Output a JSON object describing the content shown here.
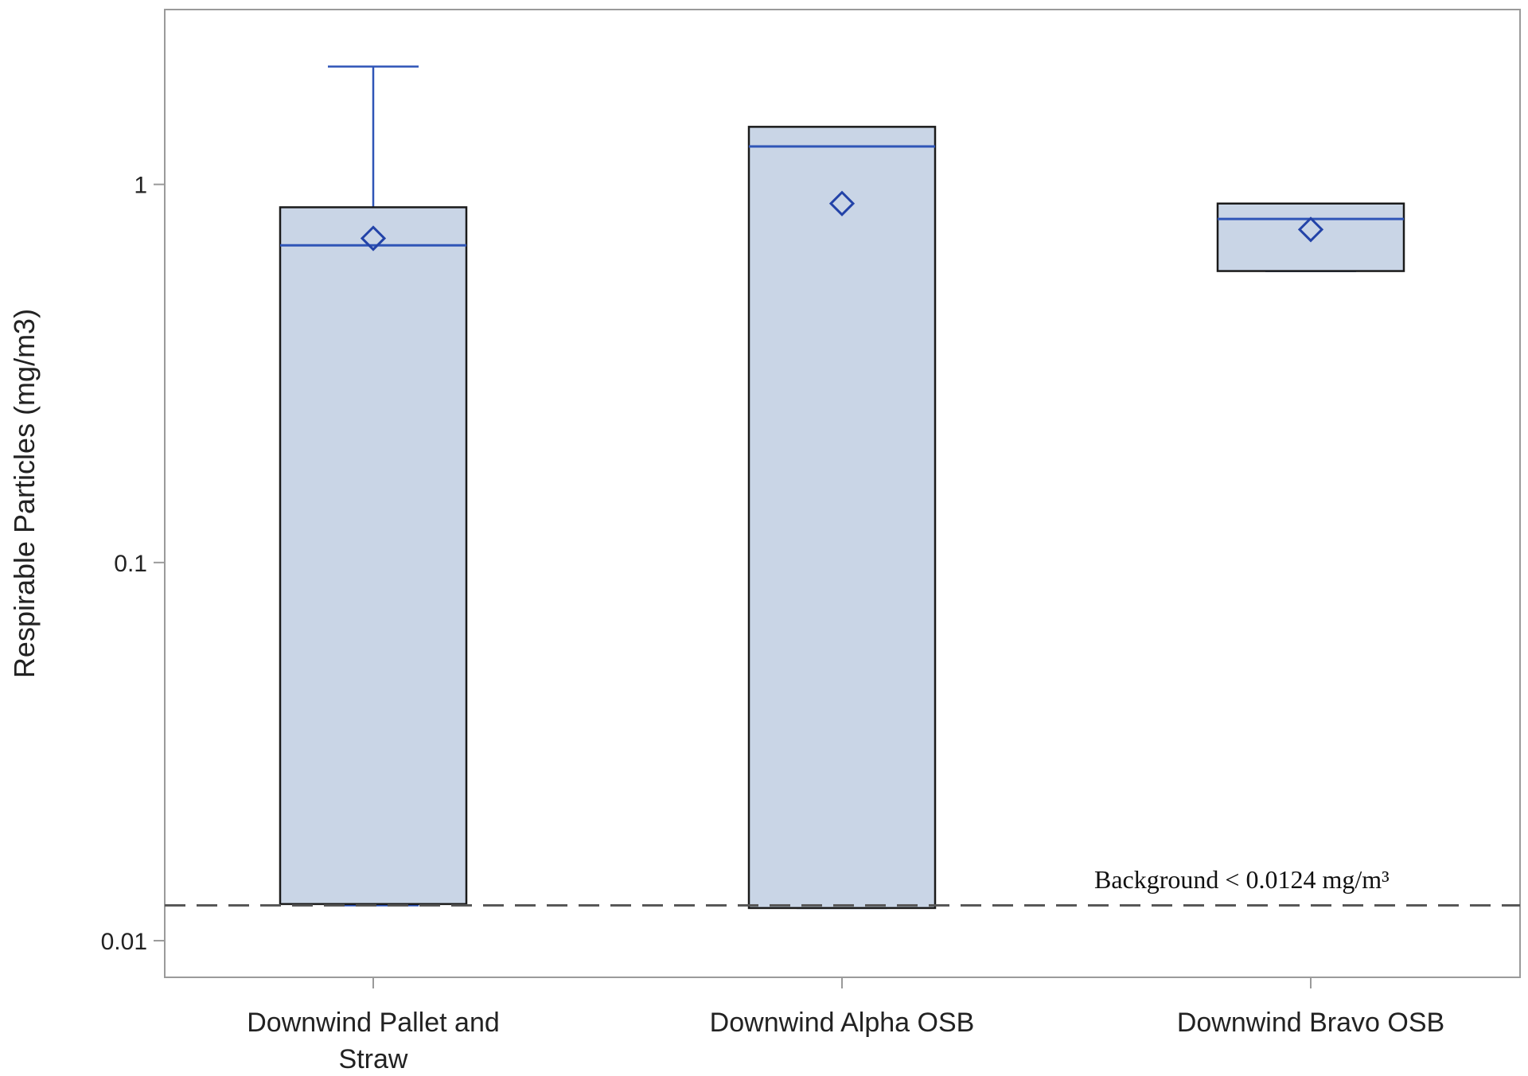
{
  "chart_data": {
    "type": "box",
    "ylabel": "Respirable Particles (mg/m3)",
    "yscale": "log",
    "ylim": [
      0.008,
      2.9
    ],
    "yticks": [
      {
        "value": 0.01,
        "label": "0.01"
      },
      {
        "value": 0.1,
        "label": "0.1"
      },
      {
        "value": 1,
        "label": "1"
      }
    ],
    "categories": [
      {
        "label_lines": [
          "Downwind Pallet and",
          "Straw"
        ]
      },
      {
        "label_lines": [
          "Downwind Alpha OSB"
        ]
      }
    ],
    "category_third": {
      "label_lines": [
        "Downwind Bravo OSB"
      ]
    },
    "boxes": [
      {
        "min": 0.0124,
        "q1": 0.0125,
        "median": 0.69,
        "q3": 0.87,
        "max": 2.05,
        "mean": 0.72
      },
      {
        "min": 0.0122,
        "q1": 0.0122,
        "median": 1.26,
        "q3": 1.42,
        "max": 1.42,
        "mean": 0.89
      },
      {
        "min": 0.59,
        "q1": 0.59,
        "median": 0.81,
        "q3": 0.89,
        "max": 0.89,
        "mean": 0.76
      }
    ],
    "reference_line": {
      "value": 0.0124,
      "label": "Background  < 0.0124 mg/m³"
    },
    "colors": {
      "box_fill": "#c9d5e6",
      "box_edge": "#1a1a1a",
      "median_whisker": "#2f55b7",
      "mean_marker": "#2343a8",
      "reference_line": "#555555",
      "frame": "#9a9a9a"
    }
  }
}
